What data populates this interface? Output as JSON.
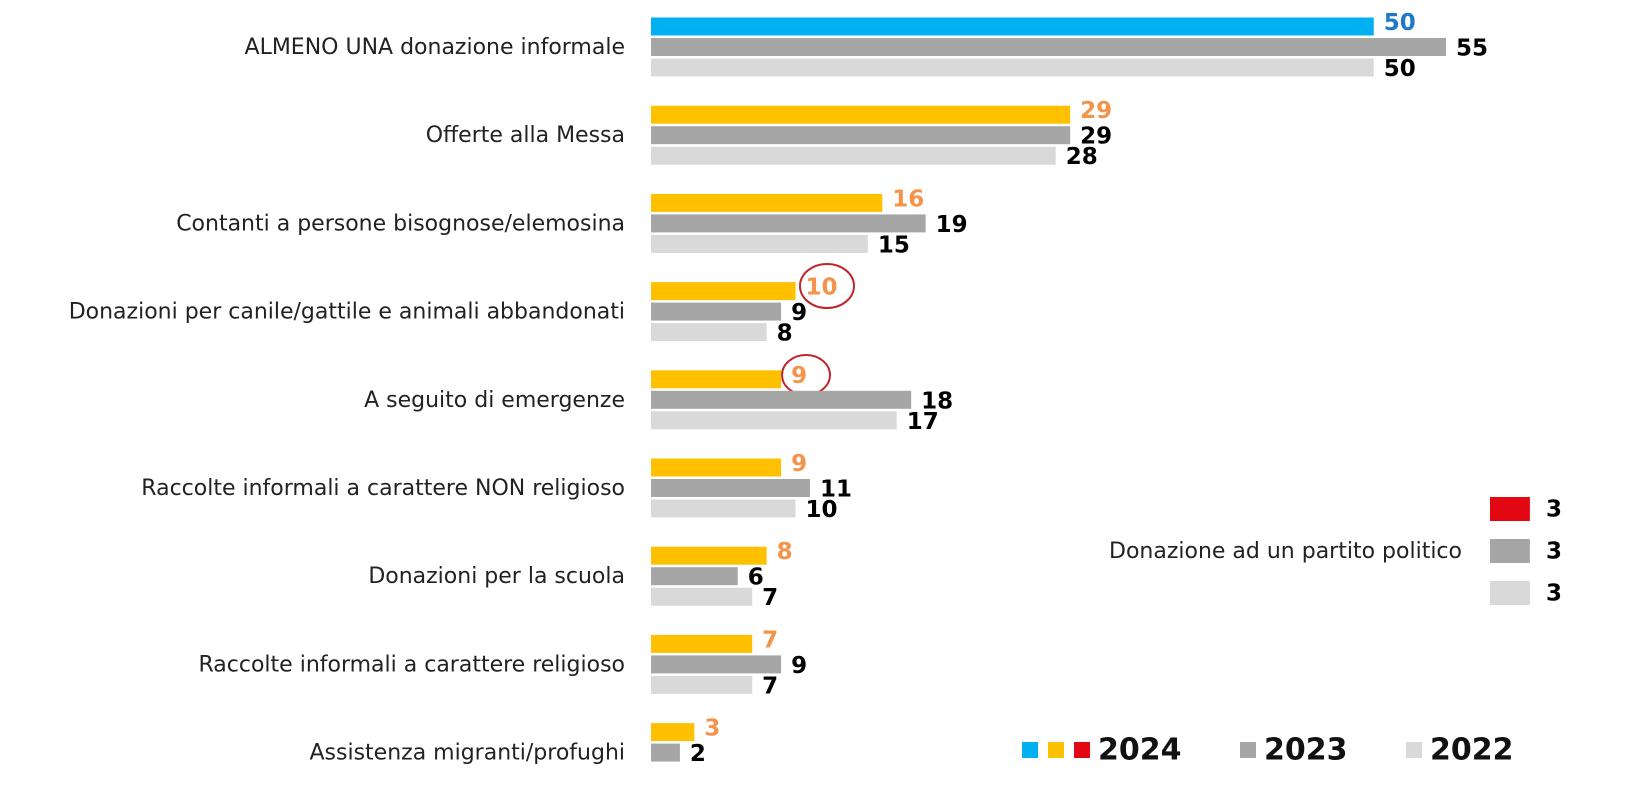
{
  "chart_data": {
    "type": "bar",
    "orientation": "horizontal",
    "categories": [
      "ALMENO UNA donazione informale",
      "Offerte alla Messa",
      "Contanti a persone bisognose/elemosina",
      "Donazioni per canile/gattile e animali abbandonati",
      "A seguito di emergenze",
      "Raccolte informali a carattere NON religioso",
      "Donazioni per la scuola",
      "Raccolte informali a carattere religioso",
      "Assistenza migranti/profughi"
    ],
    "xlim": [
      0,
      55
    ],
    "series": [
      {
        "name": "2024",
        "values": [
          50,
          29,
          16,
          10,
          9,
          9,
          8,
          7,
          3
        ],
        "colors": [
          "#00b0f0",
          "#ffc000",
          "#ffc000",
          "#ffc000",
          "#ffc000",
          "#ffc000",
          "#ffc000",
          "#ffc000",
          "#ffc000"
        ],
        "label_colors": [
          "#1f78c8",
          "#f4944b",
          "#f4944b",
          "#f4944b",
          "#f4944b",
          "#f4944b",
          "#f4944b",
          "#f4944b",
          "#f4944b"
        ]
      },
      {
        "name": "2023",
        "values": [
          55,
          29,
          19,
          9,
          18,
          11,
          6,
          9,
          2
        ],
        "color": "#a6a6a6",
        "label_color": "#000000"
      },
      {
        "name": "2022",
        "values": [
          50,
          28,
          15,
          8,
          17,
          10,
          7,
          7,
          null
        ],
        "color": "#d9d9d9",
        "label_color": "#000000"
      }
    ],
    "extra": {
      "label": "Donazione ad un partito politico",
      "values": [
        3,
        3,
        3
      ],
      "colors": [
        "#e30613",
        "#a6a6a6",
        "#d9d9d9"
      ]
    }
  }
}
